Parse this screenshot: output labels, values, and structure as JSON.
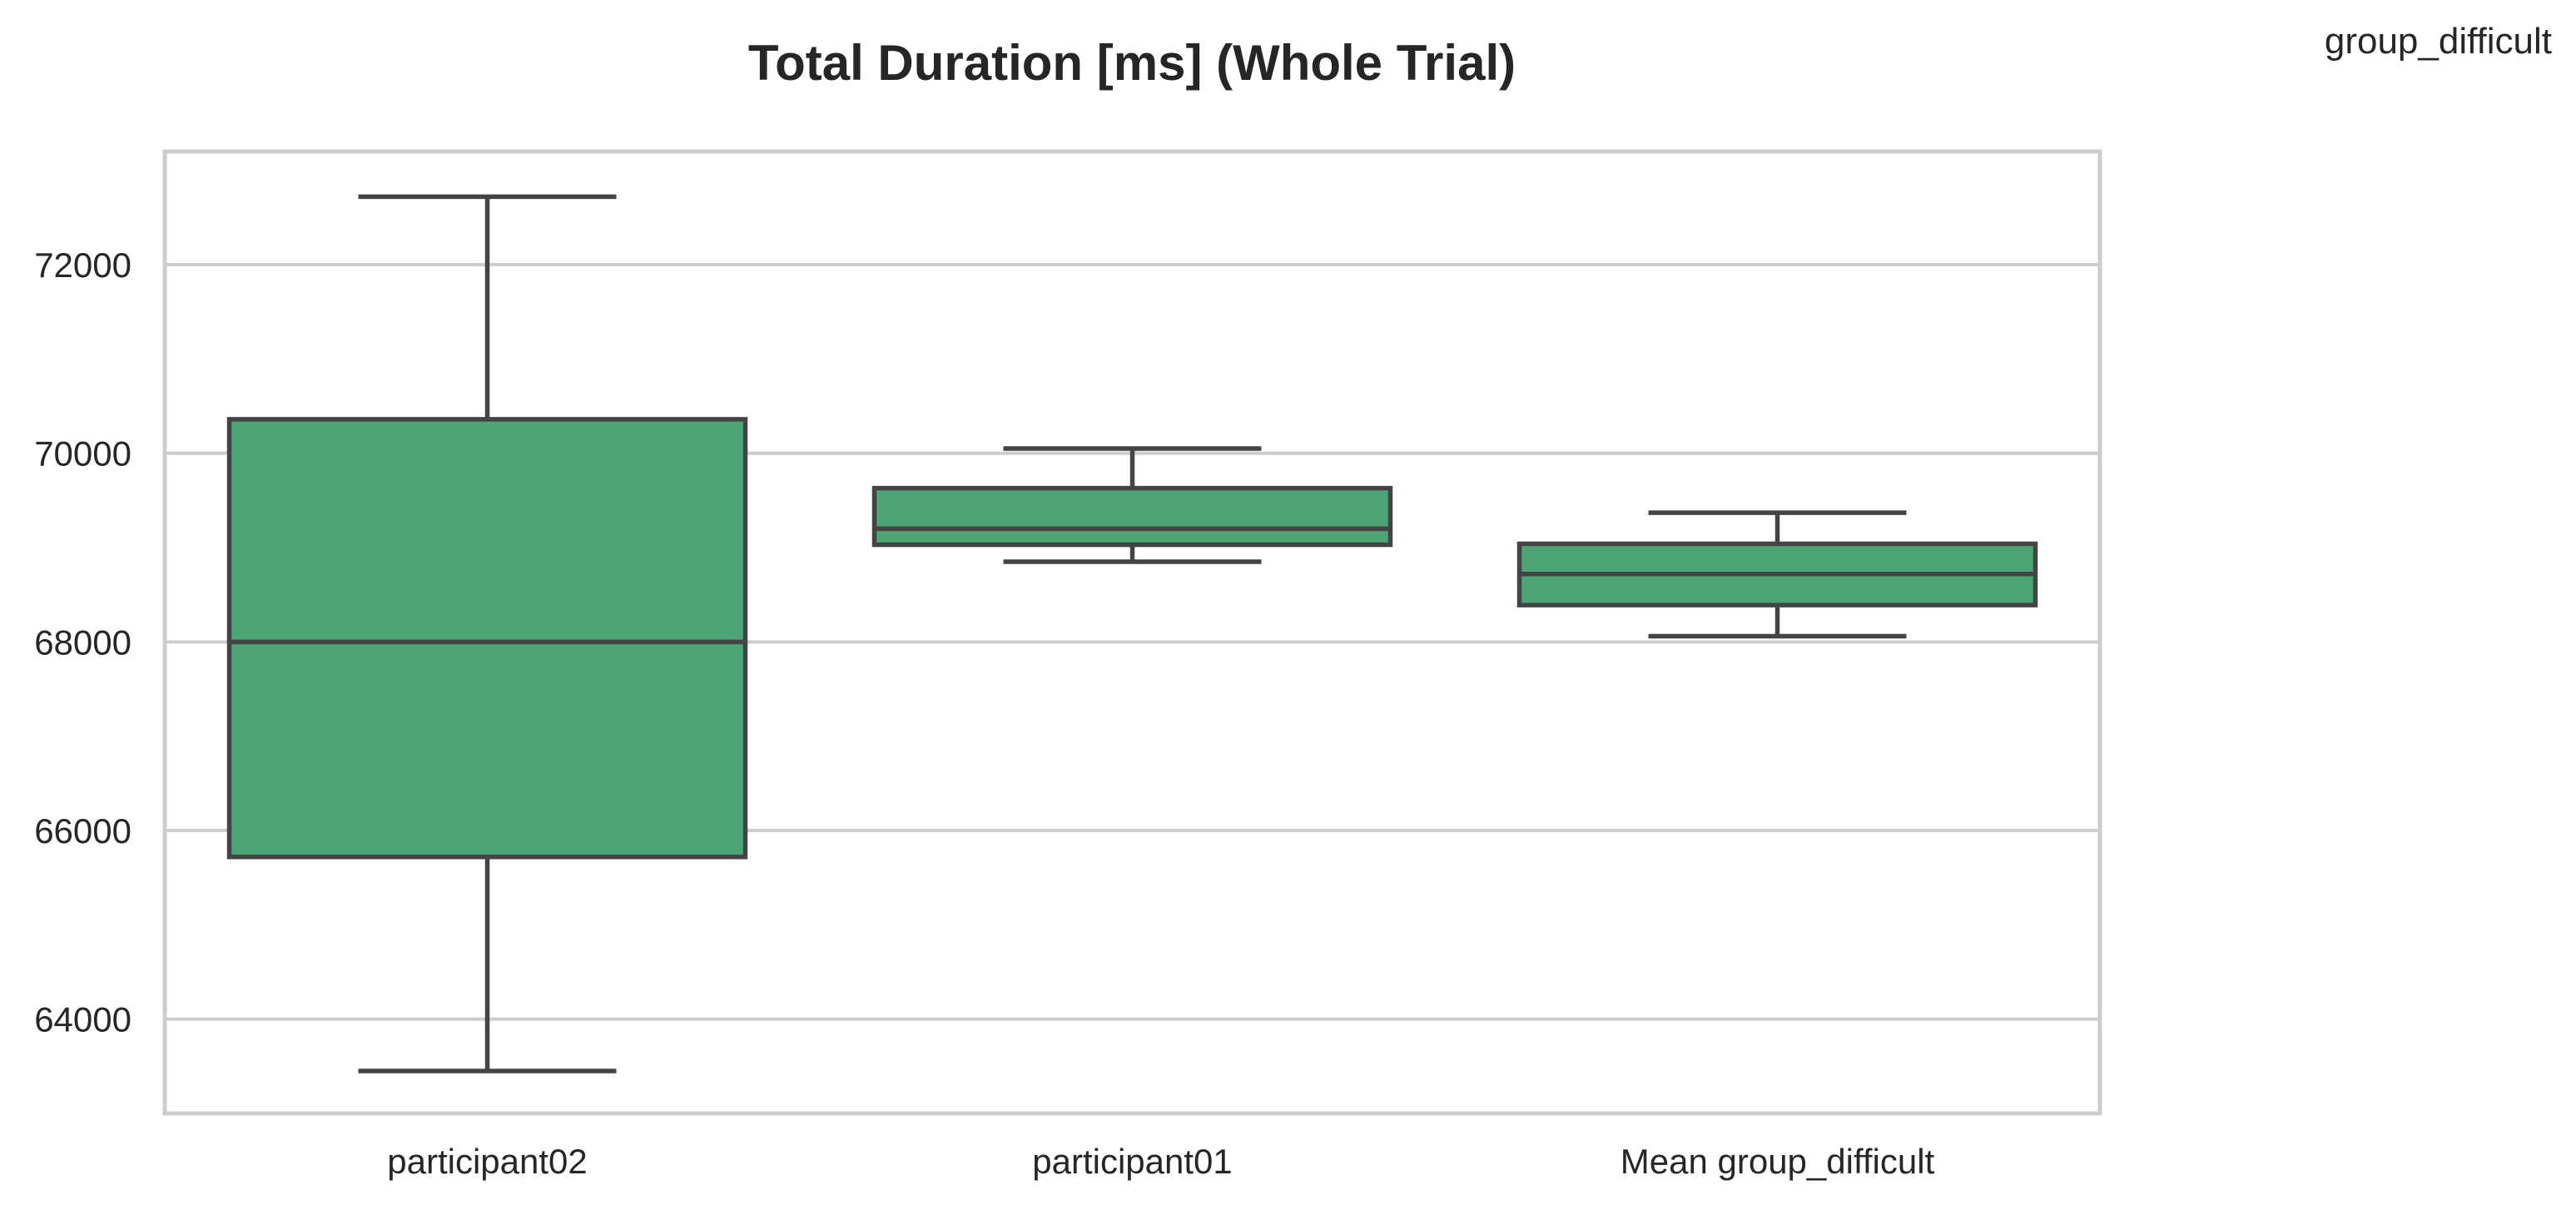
{
  "figure_label": "group_difficult",
  "chart_data": {
    "type": "box",
    "title": "Total Duration [ms] (Whole Trial)",
    "xlabel": "",
    "ylabel": "",
    "ylim": [
      63000,
      73200
    ],
    "yticks": [
      64000,
      66000,
      68000,
      70000,
      72000
    ],
    "grid": true,
    "box_color": "#4ba574",
    "edge_color": "#444444",
    "categories": [
      "participant02",
      "participant01",
      "Mean group_difficult"
    ],
    "boxes": [
      {
        "category": "participant02",
        "whisker_low": 63450,
        "q1": 65720,
        "median": 68000,
        "q3": 70360,
        "whisker_high": 72720
      },
      {
        "category": "participant01",
        "whisker_low": 68850,
        "q1": 69030,
        "median": 69200,
        "q3": 69630,
        "whisker_high": 70050
      },
      {
        "category": "Mean group_difficult",
        "whisker_low": 68060,
        "q1": 68390,
        "median": 68720,
        "q3": 69040,
        "whisker_high": 69370
      }
    ]
  }
}
